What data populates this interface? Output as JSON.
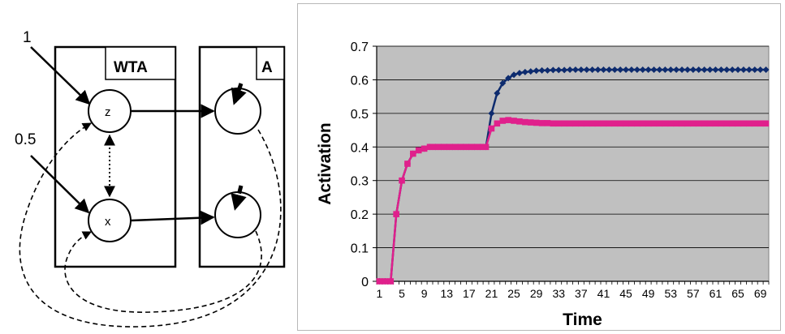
{
  "diagram": {
    "input_z": "1",
    "input_x": "0.5",
    "module_wta": "WTA",
    "module_a": "A",
    "node_z": "z",
    "node_x": "x"
  },
  "chart_data": {
    "type": "line",
    "xlabel": "Time",
    "ylabel": "Activation",
    "ylim": [
      0,
      0.7
    ],
    "yticks": [
      "0",
      "0.1",
      "0.2",
      "0.3",
      "0.4",
      "0.5",
      "0.6",
      "0.7"
    ],
    "xticks": [
      "1",
      "5",
      "9",
      "13",
      "17",
      "21",
      "25",
      "29",
      "33",
      "37",
      "41",
      "45",
      "49",
      "53",
      "57",
      "61",
      "65",
      "69"
    ],
    "plot_background": "#c0c0c0",
    "grid": true,
    "x": [
      1,
      2,
      3,
      4,
      5,
      6,
      7,
      8,
      9,
      10,
      11,
      12,
      13,
      14,
      15,
      16,
      17,
      18,
      19,
      20,
      21,
      22,
      23,
      24,
      25,
      26,
      27,
      28,
      29,
      30,
      31,
      32,
      33,
      34,
      35,
      36,
      37,
      38,
      39,
      40,
      41,
      42,
      43,
      44,
      45,
      46,
      47,
      48,
      49,
      50,
      51,
      52,
      53,
      54,
      55,
      56,
      57,
      58,
      59,
      60,
      61,
      62,
      63,
      64,
      65,
      66,
      67,
      68,
      69,
      70
    ],
    "series": [
      {
        "color": "#0d2b6e",
        "marker": "diamond",
        "values": [
          0,
          0,
          0,
          0.2,
          0.3,
          0.35,
          0.38,
          0.39,
          0.395,
          0.4,
          0.4,
          0.4,
          0.4,
          0.4,
          0.4,
          0.4,
          0.4,
          0.4,
          0.4,
          0.4,
          0.5,
          0.56,
          0.59,
          0.605,
          0.615,
          0.62,
          0.623,
          0.625,
          0.627,
          0.628,
          0.628,
          0.629,
          0.629,
          0.629,
          0.63,
          0.63,
          0.63,
          0.63,
          0.63,
          0.63,
          0.63,
          0.63,
          0.63,
          0.63,
          0.63,
          0.63,
          0.63,
          0.63,
          0.63,
          0.63,
          0.63,
          0.63,
          0.63,
          0.63,
          0.63,
          0.63,
          0.63,
          0.63,
          0.63,
          0.63,
          0.63,
          0.63,
          0.63,
          0.63,
          0.63,
          0.63,
          0.63,
          0.63,
          0.63,
          0.63
        ]
      },
      {
        "color": "#e0208c",
        "marker": "square",
        "values": [
          0,
          0,
          0,
          0.2,
          0.3,
          0.35,
          0.38,
          0.39,
          0.395,
          0.4,
          0.4,
          0.4,
          0.4,
          0.4,
          0.4,
          0.4,
          0.4,
          0.4,
          0.4,
          0.4,
          0.455,
          0.47,
          0.478,
          0.48,
          0.478,
          0.476,
          0.474,
          0.473,
          0.472,
          0.471,
          0.471,
          0.47,
          0.47,
          0.47,
          0.47,
          0.47,
          0.47,
          0.47,
          0.47,
          0.47,
          0.47,
          0.47,
          0.47,
          0.47,
          0.47,
          0.47,
          0.47,
          0.47,
          0.47,
          0.47,
          0.47,
          0.47,
          0.47,
          0.47,
          0.47,
          0.47,
          0.47,
          0.47,
          0.47,
          0.47,
          0.47,
          0.47,
          0.47,
          0.47,
          0.47,
          0.47,
          0.47,
          0.47,
          0.47,
          0.47
        ]
      }
    ]
  }
}
